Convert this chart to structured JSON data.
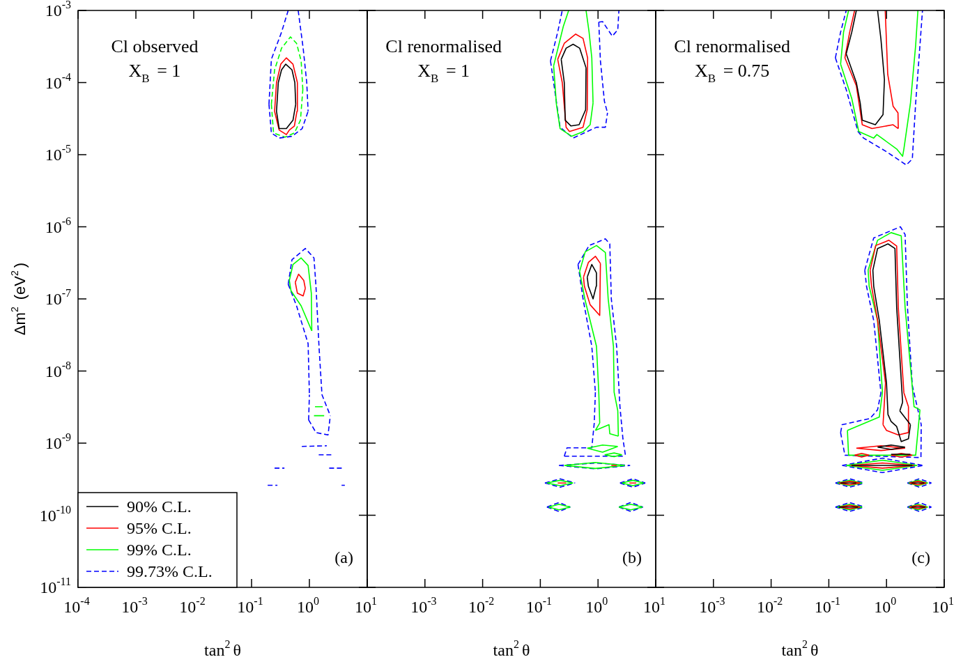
{
  "chart_data": [
    {
      "type": "line",
      "title": "Cl observed",
      "subtitle": "X$_{B}$ = 1",
      "annotations": [
        "(a)"
      ],
      "xlabel": "tan$^{2}$θ",
      "ylabel": "Δm$^{2}$ (eV$^{2}$)",
      "log": "xy",
      "legend": "bottom left",
      "xlim": [
        0.0001,
        10
      ],
      "ylim": [
        1e-11,
        0.001
      ],
      "xticks": [
        {
          "value": 0.0001,
          "label": "10$^{-4}$"
        },
        {
          "value": 0.001,
          "label": "10$^{-3}$"
        },
        {
          "value": 0.01,
          "label": "10$^{-2}$"
        },
        {
          "value": 0.1,
          "label": "10$^{-1}$"
        },
        {
          "value": 1,
          "label": "10$^{0}$"
        },
        {
          "value": 10,
          "label": "10$^{1}$"
        }
      ],
      "yticks": [
        {
          "value": 1e-11,
          "label": "10$^{-11}$"
        },
        {
          "value": 1e-10,
          "label": "10$^{-10}$"
        },
        {
          "value": 1e-09,
          "label": "10$^{-9}$"
        },
        {
          "value": 1e-08,
          "label": "10$^{-8}$"
        },
        {
          "value": 1e-07,
          "label": "10$^{-7}$"
        },
        {
          "value": 1e-06,
          "label": "10$^{-6}$"
        },
        {
          "value": 1e-05,
          "label": "10$^{-5}$"
        },
        {
          "value": 0.0001,
          "label": "10$^{-4}$"
        },
        {
          "value": 0.001,
          "label": "10$^{-3}$"
        }
      ],
      "series": [
        {
          "name": "90% C.L.",
          "color": "#000000",
          "line_style": "solid",
          "x": [
            0.27,
            0.29,
            0.33,
            0.39,
            0.5,
            0.56,
            0.58,
            null,
            0.27,
            0.3,
            0.4,
            0.52,
            0.58
          ],
          "values": [
            4e-05,
            0.0001,
            0.00015,
            0.00018,
            0.00015,
            0.0001,
            5e-05,
            null,
            4e-05,
            2.3e-05,
            2.3e-05,
            3e-05,
            5e-05
          ]
        },
        {
          "name": "95% C.L.",
          "color": "#ff0000",
          "line_style": "solid",
          "x": [
            0.25,
            0.27,
            0.32,
            0.4,
            0.52,
            0.62,
            null,
            0.25,
            0.3,
            0.4,
            0.45,
            0.55,
            0.61,
            0.62,
            null,
            0.57,
            0.65,
            0.8,
            0.85,
            null,
            0.57,
            0.62,
            0.78,
            0.85
          ],
          "values": [
            4e-05,
            0.0001,
            0.00018,
            0.00022,
            0.00018,
            0.0001,
            null,
            4e-05,
            2.2e-05,
            1.9e-05,
            2.2e-05,
            2.5e-05,
            4e-05,
            0.0001,
            null,
            1.7e-07,
            2.2e-07,
            1.8e-07,
            1.4e-07,
            null,
            1.7e-07,
            1.2e-07,
            1.1e-07,
            1.4e-07
          ]
        },
        {
          "name": "99% C.L.",
          "color": "#00ff00",
          "line_style": "solid",
          "x": [
            0.45,
            0.52,
            0.72,
            0.95,
            1.08,
            1.1,
            null,
            0.45,
            0.48,
            0.72,
            1.1,
            null,
            1.25,
            1.7,
            null,
            1.2,
            1.8
          ],
          "values": [
            1.8e-07,
            3e-07,
            3.7e-07,
            2.9e-07,
            1.2e-07,
            3.6e-08,
            null,
            1.8e-07,
            1.3e-07,
            8e-08,
            3.6e-08,
            null,
            3.2e-09,
            3.2e-09,
            null,
            2.4e-09,
            2.4e-09
          ]
        },
        {
          "name": "99.73% C.L.",
          "color": "#0000ff",
          "line_style": "dashed",
          "x": [
            0.2,
            0.22,
            0.33,
            0.43,
            null,
            0.2,
            0.22,
            0.3,
            0.5,
            0.75,
            0.95,
            null,
            0.64,
            0.78,
            0.9,
            0.95,
            null,
            0.43,
            0.5,
            0.85,
            1.2,
            1.3,
            1.47,
            1.65,
            2.3,
            null,
            0.97,
            1.3,
            2.1,
            2.3,
            null,
            0.97,
            1.0,
            null,
            0.43,
            0.6,
            0.95,
            1.0,
            null,
            0.74,
            2.0,
            null,
            1.45,
            2.4,
            null,
            0.25,
            0.37,
            null,
            2.2,
            3.9,
            null,
            0.19,
            0.28,
            null,
            3.6,
            4.1
          ],
          "values": [
            5e-05,
            0.00021,
            0.0005,
            0.001,
            null,
            5e-05,
            2e-05,
            1.7e-05,
            1.8e-05,
            2.3e-05,
            4e-05,
            null,
            0.001,
            0.0003,
            0.0001,
            4e-05,
            null,
            1.6e-07,
            3.5e-07,
            5e-07,
            3.7e-07,
            1.5e-07,
            2.1e-08,
            4.7e-09,
            2.4e-09,
            null,
            2.1e-09,
            1.4e-09,
            1.3e-09,
            2.4e-09,
            null,
            2.1e-09,
            4.7e-09,
            null,
            1.6e-07,
            8e-08,
            2.4e-08,
            4.7e-09,
            null,
            9e-10,
            9.2e-10,
            null,
            6.9e-10,
            6.9e-10,
            null,
            4.5e-10,
            4.5e-10,
            null,
            4.5e-10,
            4.5e-10,
            null,
            2.6e-10,
            2.6e-10,
            null,
            2.6e-10,
            2.6e-10
          ]
        },
        {
          "color": "#00ff00",
          "line_style": "dashed",
          "x": [
            0.22,
            0.25,
            0.33,
            0.47,
            0.6,
            0.72,
            0.77,
            null,
            0.22,
            0.24,
            0.38,
            0.55,
            0.7,
            0.77
          ],
          "values": [
            5e-05,
            0.00015,
            0.0003,
            0.00043,
            0.00035,
            0.0002,
            8e-05,
            null,
            5e-05,
            2e-05,
            1.75e-05,
            2e-05,
            3e-05,
            8e-05
          ]
        }
      ]
    },
    {
      "type": "line",
      "title": "Cl renormalised",
      "subtitle": "X$_{B}$ = 1",
      "annotations": [
        "(b)"
      ],
      "xlabel": "tan$^{2}$θ",
      "log": "xy",
      "tick_labels": "x",
      "xlim": [
        0.0001,
        10
      ],
      "ylim": [
        1e-11,
        0.001
      ],
      "xticks": [
        {
          "value": 0.0001,
          "label": null
        },
        {
          "value": 0.001,
          "label": "10$^{-3}$"
        },
        {
          "value": 0.01,
          "label": "10$^{-2}$"
        },
        {
          "value": 0.1,
          "label": "10$^{-1}$"
        },
        {
          "value": 1,
          "label": "10$^{0}$"
        },
        {
          "value": 10,
          "label": "10$^{1}$"
        }
      ],
      "yticks": [
        {
          "value": 1e-11,
          "label": null
        },
        {
          "value": 1e-10,
          "label": null
        },
        {
          "value": 1e-09,
          "label": null
        },
        {
          "value": 1e-08,
          "label": null
        },
        {
          "value": 1e-07,
          "label": null
        },
        {
          "value": 1e-06,
          "label": null
        },
        {
          "value": 1e-05,
          "label": null
        },
        {
          "value": 0.0001,
          "label": null
        },
        {
          "value": 0.001,
          "label": null
        }
      ],
      "series": [
        {
          "color": "#000000",
          "line_style": "solid",
          "x": [
            0.23,
            0.28,
            0.37,
            0.48,
            0.62,
            null,
            0.23,
            0.26,
            0.27,
            0.34,
            0.47,
            0.61,
            0.62,
            null,
            0.65,
            0.78,
            0.94,
            null,
            0.65,
            0.68,
            0.82,
            0.93,
            0.94
          ],
          "values": [
            0.00021,
            0.0003,
            0.00034,
            0.0003,
            0.00016,
            null,
            0.00021,
            0.0001,
            3e-05,
            2.5e-05,
            2.6e-05,
            4.2e-05,
            0.00016,
            null,
            2e-07,
            3e-07,
            2.3e-07,
            null,
            2e-07,
            1.5e-07,
            1e-07,
            1.5e-07,
            2.3e-07
          ]
        },
        {
          "color": "#ff0000",
          "line_style": "solid",
          "x": [
            0.2,
            0.26,
            0.41,
            0.55,
            0.66,
            null,
            0.2,
            0.24,
            0.28,
            0.32,
            0.55,
            0.65,
            0.66,
            null,
            0.56,
            0.68,
            0.9,
            1.1,
            null,
            0.56,
            0.58,
            0.73,
            1.07,
            1.1,
            null,
            1.7,
            2.1,
            null,
            0.2,
            0.28,
            null,
            3.5,
            4.6
          ],
          "values": [
            0.00021,
            0.00035,
            0.00047,
            0.00041,
            0.00022,
            null,
            0.00021,
            0.0001,
            2.4e-05,
            2.1e-05,
            2.4e-05,
            4.2e-05,
            0.00022,
            null,
            2e-07,
            3.2e-07,
            3.9e-07,
            3.1e-07,
            null,
            2e-07,
            1.5e-07,
            8.3e-08,
            5.9e-08,
            3.1e-07,
            null,
            4.9e-10,
            4.9e-10,
            null,
            2.8e-10,
            2.8e-10,
            null,
            2.8e-10,
            2.8e-10
          ]
        },
        {
          "color": "#00ff00",
          "line_style": "solid",
          "x": [
            0.48,
            0.6,
            0.94,
            1.34,
            1.5,
            1.85,
            1.9,
            2.2,
            2.25,
            null,
            0.9,
            1.55,
            1.6,
            2.25,
            null,
            0.9,
            1.07,
            null,
            0.48,
            0.59,
            0.94,
            1.03,
            1.07,
            null,
            0.17,
            0.25,
            0.31,
            null,
            0.17,
            0.19,
            0.22,
            0.35,
            0.56,
            0.73,
            0.82,
            null,
            0.62,
            0.7,
            0.78,
            0.82,
            null,
            0.65,
            1.2,
            2.2,
            null,
            0.65,
            1.2,
            2.2,
            null,
            1.3,
            1.9,
            2.6,
            null,
            1.3,
            1.9,
            2.6,
            null,
            0.26,
            0.9,
            2.9,
            null,
            0.26,
            0.9,
            2.9,
            null,
            0.13,
            0.22,
            0.37,
            null,
            0.13,
            0.22,
            0.37,
            null,
            2.6,
            4.0,
            6.2,
            null,
            2.6,
            4.0,
            6.2,
            null,
            0.14,
            0.21,
            0.33,
            null,
            0.14,
            0.21,
            0.33,
            null,
            2.3,
            3.7,
            5.9,
            null,
            2.3,
            3.7,
            5.9
          ],
          "values": [
            2.4e-07,
            4.5e-07,
            5.5e-07,
            4.4e-07,
            1e-07,
            2.2e-08,
            5.1e-09,
            2.8e-09,
            1.25e-09,
            null,
            1.5e-09,
            1.8e-09,
            1.35e-09,
            1.25e-09,
            null,
            1.5e-09,
            1.9e-09,
            null,
            2.4e-07,
            1e-07,
            2.2e-08,
            5.1e-09,
            1.9e-09,
            null,
            0.00017,
            0.0006,
            0.001,
            null,
            0.00017,
            5e-05,
            2.3e-05,
            1.8e-05,
            2.1e-05,
            2.6e-05,
            5.2e-05,
            null,
            0.001,
            0.0005,
            0.00022,
            5.2e-05,
            null,
            8.5e-10,
            9.4e-10,
            9e-10,
            null,
            8.5e-10,
            7.5e-10,
            9e-10,
            null,
            6.9e-10,
            7.3e-10,
            6.9e-10,
            null,
            6.9e-10,
            6.5e-10,
            6.9e-10,
            null,
            4.9e-10,
            5.4e-10,
            4.9e-10,
            null,
            4.9e-10,
            4.45e-10,
            4.9e-10,
            null,
            2.8e-10,
            3.05e-10,
            2.8e-10,
            null,
            2.8e-10,
            2.57e-10,
            2.8e-10,
            null,
            2.8e-10,
            3.05e-10,
            2.8e-10,
            null,
            2.8e-10,
            2.57e-10,
            2.8e-10,
            null,
            1.3e-10,
            1.42e-10,
            1.3e-10,
            null,
            1.3e-10,
            1.19e-10,
            1.3e-10,
            null,
            1.3e-10,
            1.42e-10,
            1.3e-10,
            null,
            1.3e-10,
            1.19e-10,
            1.3e-10
          ]
        },
        {
          "color": "#0000ff",
          "line_style": "dashed",
          "x": [
            0.15,
            0.2,
            0.24,
            null,
            0.15,
            0.17,
            0.22,
            0.37,
            0.94,
            1.34,
            1.46,
            null,
            1.03,
            1.1,
            1.29,
            1.46,
            null,
            1.03,
            1.2,
            1.77,
            2.2,
            2.3,
            null,
            0.45,
            0.7,
            1.34,
            1.6,
            1.7,
            2.1,
            2.4,
            2.7,
            3.0,
            null,
            0.26,
            3.0,
            null,
            0.26,
            0.29,
            0.78,
            0.86,
            0.9,
            null,
            0.45,
            0.55,
            0.78,
            0.9,
            null,
            0.21,
            0.9,
            3.6,
            null,
            0.21,
            0.9,
            3.6,
            null,
            0.12,
            0.22,
            0.4,
            null,
            0.12,
            0.22,
            0.4,
            null,
            2.4,
            4.0,
            6.6,
            null,
            2.4,
            4.0,
            6.6,
            null,
            0.13,
            0.21,
            0.33,
            null,
            0.13,
            0.21,
            0.33,
            null,
            2.3,
            3.7,
            6.0,
            null,
            2.3,
            3.7,
            6.0
          ],
          "values": [
            0.0002,
            0.0005,
            0.001,
            null,
            0.0002,
            0.0001,
            2.4e-05,
            1.7e-05,
            2.4e-05,
            2.4e-05,
            3.8e-05,
            null,
            0.00069,
            0.0002,
            5.5e-05,
            3.8e-05,
            null,
            0.00069,
            0.0007,
            0.00044,
            0.00054,
            0.001,
            null,
            3e-07,
            5.5e-07,
            6.8e-07,
            5.8e-07,
            1e-07,
            2.2e-08,
            3.2e-09,
            1.15e-09,
            6.6e-10,
            null,
            6.6e-10,
            6.6e-10,
            null,
            6.6e-10,
            8.6e-10,
            8.6e-10,
            1.9e-09,
            5.1e-09,
            null,
            3e-07,
            1e-07,
            2.2e-08,
            5.1e-09,
            null,
            4.9e-10,
            5.3e-10,
            4.9e-10,
            null,
            4.9e-10,
            4.4e-10,
            4.9e-10,
            null,
            2.8e-10,
            3.2e-10,
            2.8e-10,
            null,
            2.8e-10,
            2.45e-10,
            2.8e-10,
            null,
            2.8e-10,
            3.2e-10,
            2.8e-10,
            null,
            2.8e-10,
            2.45e-10,
            2.8e-10,
            null,
            1.3e-10,
            1.5e-10,
            1.3e-10,
            null,
            1.3e-10,
            1.13e-10,
            1.3e-10,
            null,
            1.3e-10,
            1.5e-10,
            1.3e-10,
            null,
            1.3e-10,
            1.13e-10,
            1.3e-10
          ]
        }
      ]
    },
    {
      "type": "line",
      "title": "Cl renormalised",
      "subtitle": "X$_{B}$ = 0.75",
      "annotations": [
        "(c)"
      ],
      "xlabel": "tan$^{2}$θ",
      "log": "xy",
      "tick_labels": "x",
      "xlim": [
        0.0001,
        10
      ],
      "ylim": [
        1e-11,
        0.001
      ],
      "xticks": [
        {
          "value": 0.0001,
          "label": null
        },
        {
          "value": 0.001,
          "label": "10$^{-3}$"
        },
        {
          "value": 0.01,
          "label": "10$^{-2}$"
        },
        {
          "value": 0.1,
          "label": "10$^{-1}$"
        },
        {
          "value": 1,
          "label": "10$^{0}$"
        },
        {
          "value": 10,
          "label": "10$^{1}$"
        }
      ],
      "yticks": [
        {
          "value": 1e-11,
          "label": null
        },
        {
          "value": 1e-10,
          "label": null
        },
        {
          "value": 1e-09,
          "label": null
        },
        {
          "value": 1e-08,
          "label": null
        },
        {
          "value": 1e-07,
          "label": null
        },
        {
          "value": 1e-06,
          "label": null
        },
        {
          "value": 1e-05,
          "label": null
        },
        {
          "value": 0.0001,
          "label": null
        },
        {
          "value": 0.001,
          "label": null
        }
      ],
      "series": [
        {
          "color": "#000000",
          "line_style": "solid",
          "x": [
            0.2,
            0.25,
            0.3,
            null,
            0.2,
            0.3,
            0.35,
            0.38,
            0.64,
            0.87,
            0.92,
            null,
            0.7,
            0.8,
            0.92,
            null,
            0.58,
            0.7,
            1.06,
            1.4,
            1.5,
            1.9,
            null,
            1.7,
            1.9,
            null,
            1.7,
            2.6,
            null,
            0.58,
            0.6,
            0.75,
            1.0,
            1.06,
            1.2,
            1.5,
            1.8,
            2.4,
            2.6,
            null,
            0.7,
            1.2,
            2.1,
            null,
            0.7,
            1.2,
            2.1,
            null,
            1.2,
            2.6,
            null,
            0.25,
            2.8,
            null,
            0.16,
            0.3,
            null,
            2.7,
            4.5,
            null,
            0.15,
            0.32,
            null,
            2.7,
            4.7
          ],
          "values": [
            0.00025,
            0.0005,
            0.001,
            null,
            0.00025,
            0.0001,
            5.2e-05,
            3e-05,
            2.6e-05,
            3.6e-05,
            0.00011,
            null,
            0.001,
            0.0004,
            0.00011,
            null,
            2.5e-07,
            5e-07,
            5.8e-07,
            5e-07,
            7.6e-08,
            3.7e-09,
            null,
            2.8e-09,
            3.7e-09,
            null,
            2.8e-09,
            1.8e-09,
            null,
            2.5e-07,
            1.5e-07,
            5e-08,
            6.8e-09,
            2.5e-09,
            2e-09,
            1.7e-09,
            1.05e-09,
            1.15e-09,
            1.8e-09,
            null,
            8.8e-10,
            9.4e-10,
            8.8e-10,
            null,
            8.8e-10,
            8.2e-10,
            8.8e-10,
            null,
            7e-10,
            7e-10,
            null,
            4.9e-10,
            4.9e-10,
            null,
            2.8e-10,
            2.8e-10,
            null,
            2.8e-10,
            2.8e-10,
            null,
            1.3e-10,
            1.3e-10,
            null,
            1.3e-10,
            1.3e-10
          ]
        },
        {
          "color": "#ff0000",
          "line_style": "solid",
          "x": [
            0.19,
            0.23,
            0.28,
            null,
            0.19,
            0.3,
            0.38,
            0.56,
            1.3,
            1.6,
            null,
            0.95,
            1.05,
            1.3,
            1.58,
            1.6,
            null,
            0.52,
            0.65,
            1.1,
            1.5,
            1.6,
            2.0,
            2.4,
            null,
            0.87,
            1.0,
            1.6,
            2.38,
            2.4,
            null,
            0.87,
            0.96,
            null,
            0.52,
            0.55,
            0.7,
            0.96,
            null,
            0.3,
            0.8,
            2.1,
            null,
            0.3,
            0.8,
            2.1,
            null,
            0.28,
            0.37,
            0.5,
            null,
            0.28,
            0.37,
            0.5,
            null,
            1.2,
            1.8,
            2.8,
            null,
            1.2,
            1.8,
            2.8,
            null,
            0.24,
            0.85,
            3.0,
            null,
            0.24,
            0.85,
            3.0,
            null,
            0.15,
            0.23,
            0.35,
            null,
            0.15,
            0.23,
            0.35,
            null,
            2.5,
            3.5,
            4.9,
            null,
            2.5,
            3.5,
            4.9,
            null,
            0.15,
            0.23,
            0.35,
            null,
            0.15,
            0.23,
            0.35,
            null,
            2.5,
            3.5,
            4.9,
            null,
            2.5,
            3.5,
            4.9
          ],
          "values": [
            0.00022,
            0.0005,
            0.001,
            null,
            0.00022,
            9e-05,
            2.6e-05,
            2.3e-05,
            2.6e-05,
            2.3e-05,
            null,
            0.001,
            0.00013,
            4.7e-05,
            3.8e-05,
            2.3e-05,
            null,
            2.5e-07,
            5.5e-07,
            6.5e-07,
            5.4e-07,
            7.6e-08,
            5e-09,
            3.2e-09,
            null,
            1.8e-09,
            1.5e-09,
            1.3e-09,
            1.4e-09,
            3.2e-09,
            null,
            1.8e-09,
            6.8e-09,
            null,
            2.5e-07,
            1.5e-07,
            5e-08,
            6.8e-09,
            null,
            8.5e-10,
            9.2e-10,
            8.5e-10,
            null,
            8.5e-10,
            7.9e-10,
            8.5e-10,
            null,
            6.8e-10,
            7.2e-10,
            6.8e-10,
            null,
            6.8e-10,
            6.4e-10,
            6.8e-10,
            null,
            6.8e-10,
            7.2e-10,
            6.8e-10,
            null,
            6.8e-10,
            6.4e-10,
            6.8e-10,
            null,
            4.9e-10,
            5.3e-10,
            4.9e-10,
            null,
            4.9e-10,
            4.5e-10,
            4.9e-10,
            null,
            2.8e-10,
            2.95e-10,
            2.8e-10,
            null,
            2.8e-10,
            2.65e-10,
            2.8e-10,
            null,
            2.8e-10,
            2.95e-10,
            2.8e-10,
            null,
            2.8e-10,
            2.65e-10,
            2.8e-10,
            null,
            1.3e-10,
            1.37e-10,
            1.3e-10,
            null,
            1.3e-10,
            1.23e-10,
            1.3e-10,
            null,
            1.3e-10,
            1.37e-10,
            1.3e-10,
            null,
            1.3e-10,
            1.23e-10,
            1.3e-10
          ]
        },
        {
          "color": "#00ff00",
          "line_style": "solid",
          "x": [
            0.16,
            0.18,
            0.22,
            null,
            0.16,
            0.25,
            0.33,
            0.6,
            0.68,
            1.5,
            1.9,
            2.0,
            2.6,
            3.2,
            3.5,
            null,
            0.48,
            0.7,
            1.2,
            1.8,
            2.1,
            3.0,
            3.8,
            null,
            0.21,
            0.22,
            3.2,
            3.8,
            null,
            0.21,
            0.75,
            0.85,
            null,
            0.48,
            0.5,
            0.7,
            0.85,
            null,
            0.2,
            0.85,
            3.4,
            null,
            0.2,
            0.85,
            3.4,
            null,
            0.14,
            0.23,
            0.38,
            null,
            0.14,
            0.23,
            0.38,
            null,
            2.4,
            3.5,
            5.2,
            null,
            2.4,
            3.5,
            5.2,
            null,
            0.14,
            0.23,
            0.38,
            null,
            0.14,
            0.23,
            0.38,
            null,
            2.4,
            3.5,
            5.2,
            null,
            2.4,
            3.5,
            5.2
          ],
          "values": [
            0.00018,
            0.0005,
            0.001,
            null,
            0.00018,
            6e-05,
            2.1e-05,
            1.7e-05,
            1.9e-05,
            1.2e-05,
            9.5e-06,
            1.2e-05,
            5.2e-05,
            0.00033,
            0.001,
            null,
            2.5e-07,
            6.5e-07,
            8.3e-07,
            7.5e-07,
            7.6e-08,
            3.2e-09,
            2.9e-09,
            null,
            1.5e-09,
            6.8e-10,
            6.8e-10,
            2.9e-09,
            null,
            1.5e-09,
            2.3e-09,
            5.1e-09,
            null,
            2.5e-07,
            1.5e-07,
            5e-08,
            5.1e-09,
            null,
            4.9e-10,
            5.8e-10,
            4.9e-10,
            null,
            4.9e-10,
            4.2e-10,
            4.9e-10,
            null,
            2.8e-10,
            3.05e-10,
            2.8e-10,
            null,
            2.8e-10,
            2.57e-10,
            2.8e-10,
            null,
            2.8e-10,
            3.05e-10,
            2.8e-10,
            null,
            2.8e-10,
            2.57e-10,
            2.8e-10,
            null,
            1.3e-10,
            1.42e-10,
            1.3e-10,
            null,
            1.3e-10,
            1.19e-10,
            1.3e-10,
            null,
            1.3e-10,
            1.42e-10,
            1.3e-10,
            null,
            1.3e-10,
            1.19e-10,
            1.3e-10
          ]
        },
        {
          "color": "#0000ff",
          "line_style": "dashed",
          "x": [
            0.13,
            0.16,
            0.2,
            null,
            0.13,
            0.2,
            0.32,
            0.4,
            1.0,
            2.2,
            2.8,
            3.2,
            3.8,
            4.2,
            null,
            0.42,
            0.6,
            1.74,
            2.1,
            2.3,
            2.8,
            4.0,
            null,
            0.16,
            0.19,
            3.95,
            4.0,
            null,
            0.16,
            0.17,
            0.52,
            0.7,
            0.8,
            null,
            0.42,
            0.45,
            0.6,
            0.8,
            null,
            0.17,
            0.85,
            4.3,
            null,
            0.17,
            0.85,
            4.3,
            null,
            0.13,
            0.23,
            0.42,
            null,
            0.13,
            0.23,
            0.42,
            null,
            2.3,
            3.7,
            6.0,
            null,
            2.3,
            3.7,
            6.0,
            null,
            0.13,
            0.23,
            0.42,
            null,
            0.13,
            0.23,
            0.42,
            null,
            2.3,
            3.7,
            6.0,
            null,
            2.3,
            3.7,
            6.0
          ],
          "values": [
            0.00022,
            0.0005,
            0.001,
            null,
            0.00022,
            8e-05,
            2.1e-05,
            1.7e-05,
            1.1e-05,
            7.2e-06,
            8.7e-06,
            5.2e-05,
            0.00033,
            0.001,
            null,
            2.5e-07,
            7e-07,
            1e-06,
            7.8e-07,
            8e-08,
            6.3e-09,
            1.8e-09,
            null,
            1.4e-09,
            6.8e-10,
            6.3e-10,
            1.8e-09,
            null,
            1.4e-09,
            1.8e-09,
            2.2e-09,
            2.9e-09,
            5e-09,
            null,
            2.5e-07,
            1.5e-07,
            5e-08,
            5e-09,
            null,
            4.9e-10,
            6.2e-10,
            4.9e-10,
            null,
            4.9e-10,
            3.9e-10,
            4.9e-10,
            null,
            2.8e-10,
            3.2e-10,
            2.8e-10,
            null,
            2.8e-10,
            2.45e-10,
            2.8e-10,
            null,
            2.8e-10,
            3.2e-10,
            2.8e-10,
            null,
            2.8e-10,
            2.45e-10,
            2.8e-10,
            null,
            1.3e-10,
            1.5e-10,
            1.3e-10,
            null,
            1.3e-10,
            1.13e-10,
            1.3e-10,
            null,
            1.3e-10,
            1.5e-10,
            1.3e-10,
            null,
            1.3e-10,
            1.13e-10,
            1.3e-10
          ]
        }
      ]
    }
  ]
}
